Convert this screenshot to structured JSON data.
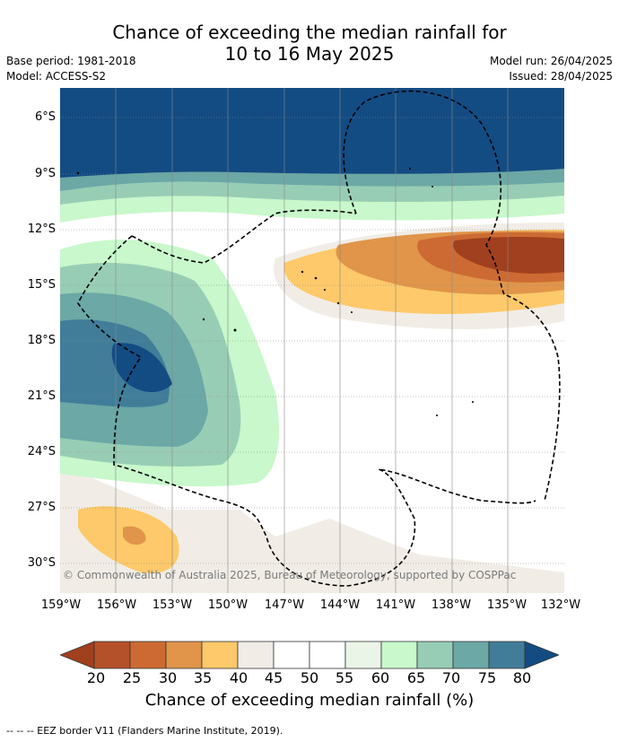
{
  "title": {
    "line1": "Chance of exceeding the median rainfall for",
    "line2": "10 to 16 May 2025"
  },
  "meta": {
    "base_period": "Base period: 1981-2018",
    "model": "Model: ACCESS-S2",
    "model_run": "Model run: 26/04/2025",
    "issued": "Issued: 28/04/2025"
  },
  "y_ticks": [
    "6°S",
    "9°S",
    "12°S",
    "15°S",
    "18°S",
    "21°S",
    "24°S",
    "27°S",
    "30°S"
  ],
  "x_ticks": [
    "159°W",
    "156°W",
    "153°W",
    "150°W",
    "147°W",
    "144°W",
    "141°W",
    "138°W",
    "135°W",
    "132°W"
  ],
  "copyright": "© Commonwealth of Australia 2025, Bureau of Meteorology, supported by COSPPac",
  "colorbar": {
    "ticks": [
      "20",
      "25",
      "30",
      "35",
      "40",
      "45",
      "50",
      "55",
      "60",
      "65",
      "70",
      "75",
      "80"
    ],
    "colors": [
      "#a0401f",
      "#b5512a",
      "#cd6a33",
      "#e0954a",
      "#fdc96a",
      "#f1ede6",
      "#ffffff",
      "#ffffff",
      "#eaf5e8",
      "#c8f8cb",
      "#98cdb5",
      "#6ba8a6",
      "#417d99",
      "#134c83"
    ],
    "label": "Chance of exceeding median rainfall (%)"
  },
  "footer": "--  --  -- EEZ border V11 (Flanders Marine Institute, 2019)."
}
